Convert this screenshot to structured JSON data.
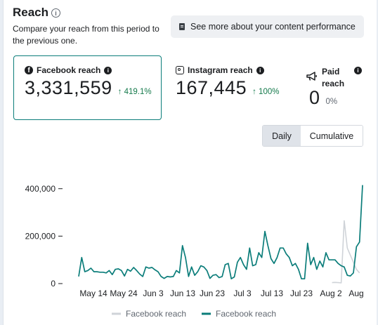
{
  "header": {
    "title": "Reach",
    "info_glyph": "i",
    "subtitle": "Compare your reach from this period to the previous one.",
    "performance_button": "See more about your content performance"
  },
  "metrics": [
    {
      "label": "Facebook reach",
      "value": "3,331,559",
      "change": "↑ 419.1%",
      "icon": "facebook-icon",
      "selected": true
    },
    {
      "label": "Instagram reach",
      "value": "167,445",
      "change": "↑ 100%",
      "icon": "instagram-icon"
    },
    {
      "label": "Paid reach",
      "value": "0",
      "change": "0%",
      "icon": "megaphone-icon"
    }
  ],
  "view_tabs": {
    "daily": "Daily",
    "cumulative": "Cumulative",
    "selected": "Daily"
  },
  "colors": {
    "current": "#0b7d7a",
    "previous": "#cfd3d8",
    "positive": "#157a4c"
  },
  "chart_data": {
    "type": "line",
    "ylim": [
      0,
      420000
    ],
    "y_ticks": [
      {
        "value": 0,
        "label": "0"
      },
      {
        "value": 200000,
        "label": "200,000"
      },
      {
        "value": 400000,
        "label": "400,000"
      }
    ],
    "x_ticks": [
      "May 14",
      "May 24",
      "Jun 3",
      "Jun 13",
      "Jun 23",
      "Jul 3",
      "Jul 13",
      "Jul 23",
      "Aug 2",
      "Aug"
    ],
    "series": [
      {
        "name": "Facebook reach",
        "color": "#cfd3d8",
        "values": [
          null,
          null,
          null,
          null,
          null,
          null,
          null,
          null,
          null,
          null,
          null,
          null,
          null,
          null,
          null,
          null,
          null,
          null,
          null,
          null,
          null,
          null,
          null,
          null,
          null,
          null,
          null,
          null,
          null,
          null,
          null,
          null,
          null,
          null,
          null,
          null,
          null,
          null,
          null,
          null,
          null,
          null,
          null,
          null,
          null,
          null,
          null,
          null,
          null,
          null,
          null,
          null,
          null,
          null,
          null,
          null,
          null,
          null,
          null,
          null,
          null,
          null,
          null,
          null,
          null,
          null,
          null,
          null,
          null,
          null,
          null,
          null,
          null,
          null,
          null,
          null,
          null,
          null,
          null,
          null,
          null,
          null,
          null,
          4000,
          5000,
          4000,
          3000,
          265000,
          150000,
          120000,
          90000,
          60000,
          45000
        ]
      },
      {
        "name": "Facebook reach",
        "color": "#0b7d7a",
        "values": [
          30000,
          110000,
          50000,
          55000,
          65000,
          50000,
          50000,
          48000,
          48000,
          45000,
          55000,
          38000,
          60000,
          62000,
          55000,
          32000,
          60000,
          52000,
          68000,
          55000,
          40000,
          30000,
          70000,
          65000,
          68000,
          58000,
          50000,
          30000,
          22000,
          30000,
          28000,
          30000,
          55000,
          45000,
          160000,
          110000,
          30000,
          70000,
          35000,
          50000,
          75000,
          70000,
          55000,
          22000,
          35000,
          38000,
          25000,
          30000,
          80000,
          85000,
          20000,
          28000,
          90000,
          110000,
          80000,
          60000,
          150000,
          75000,
          80000,
          130000,
          110000,
          220000,
          160000,
          105000,
          85000,
          110000,
          150000,
          150000,
          125000,
          110000,
          75000,
          85000,
          60000,
          20000,
          20000,
          170000,
          80000,
          110000,
          60000,
          95000,
          70000,
          130000,
          100000,
          100000,
          100000,
          85000,
          75000,
          70000,
          35000,
          32000,
          45000,
          155000,
          175000,
          415000
        ]
      }
    ],
    "legend": [
      "Facebook reach",
      "Facebook reach"
    ],
    "legend_position": "bottom"
  }
}
